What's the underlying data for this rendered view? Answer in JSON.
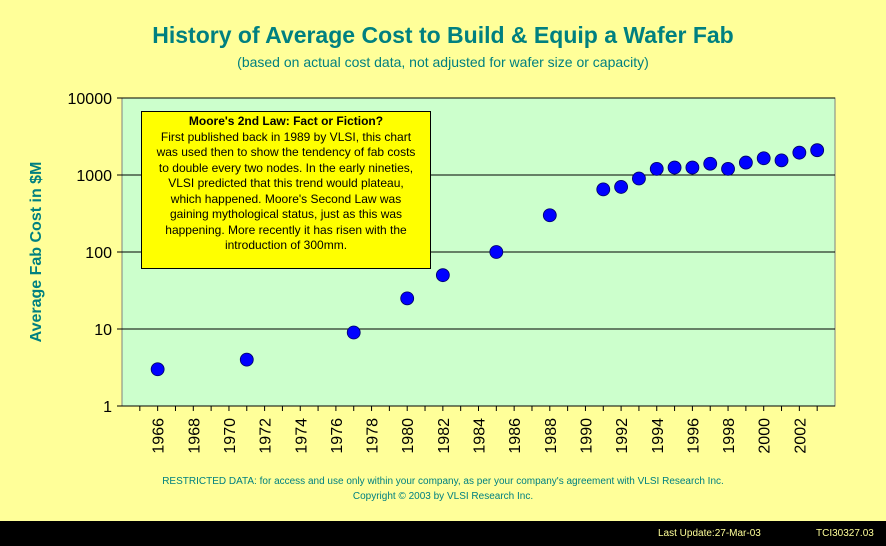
{
  "title": "History of Average Cost to Build & Equip a Wafer Fab",
  "subtitle": "(based on actual cost data, not adjusted for wafer size or capacity)",
  "note": {
    "title": "Moore's 2nd Law: Fact or Fiction?",
    "lines": [
      "First published back in 1989 by VLSI, this chart",
      "was used then to show the tendency of fab costs",
      "to double every two nodes.  In the early nineties,",
      "VLSI predicted that this trend would plateau,",
      "which happened.  Moore's Second Law was",
      "gaining mythological status, just as this was",
      "happening.   More recently it has risen with the",
      "introduction of 300mm."
    ]
  },
  "footer": {
    "restricted": "RESTRICTED DATA: for access and use only within your company, as per your company's agreement with VLSI Research Inc.",
    "copyright": "Copyright © 2003 by VLSI Research Inc."
  },
  "last_update": "Last Update:27-Mar-03",
  "doc_code": "TCI30327.03",
  "colors": {
    "background": "#ffff99",
    "plot_area": "#ccffcc",
    "marker": "#0000ff",
    "title": "#008080",
    "note": "#ffff00"
  },
  "chart_data": {
    "type": "scatter",
    "title": "History of Average Cost to Build & Equip a Wafer Fab",
    "xlabel": "",
    "ylabel": "Average Fab Cost in $M",
    "yscale": "log",
    "ylim": [
      1,
      10000
    ],
    "xlim": [
      1964,
      2004
    ],
    "y_ticks": [
      "1",
      "10",
      "100",
      "1000",
      "10000"
    ],
    "x_ticks": [
      "1966",
      "1968",
      "1970",
      "1972",
      "1974",
      "1976",
      "1978",
      "1980",
      "1982",
      "1984",
      "1986",
      "1988",
      "1990",
      "1992",
      "1994",
      "1996",
      "1998",
      "2000",
      "2002"
    ],
    "grid": true,
    "points": [
      {
        "x": 1966,
        "y": 3
      },
      {
        "x": 1971,
        "y": 4
      },
      {
        "x": 1977,
        "y": 9
      },
      {
        "x": 1980,
        "y": 25
      },
      {
        "x": 1982,
        "y": 50
      },
      {
        "x": 1985,
        "y": 100
      },
      {
        "x": 1988,
        "y": 300
      },
      {
        "x": 1991,
        "y": 650
      },
      {
        "x": 1992,
        "y": 700
      },
      {
        "x": 1993,
        "y": 900
      },
      {
        "x": 1994,
        "y": 1200
      },
      {
        "x": 1995,
        "y": 1250
      },
      {
        "x": 1996,
        "y": 1250
      },
      {
        "x": 1997,
        "y": 1400
      },
      {
        "x": 1998,
        "y": 1200
      },
      {
        "x": 1999,
        "y": 1450
      },
      {
        "x": 2000,
        "y": 1650
      },
      {
        "x": 2001,
        "y": 1550
      },
      {
        "x": 2002,
        "y": 1950
      },
      {
        "x": 2003,
        "y": 2100
      }
    ]
  }
}
